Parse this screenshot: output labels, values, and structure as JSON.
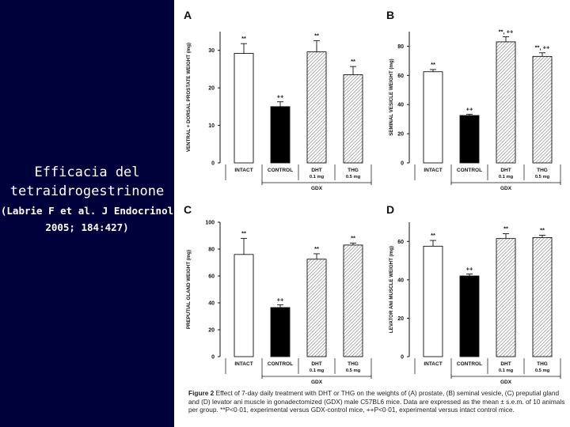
{
  "slide": {
    "title": "Efficacia del tetraidrogestrinone",
    "citation": "(Labrie F et al. J Endocrinol 2005; 184:427)"
  },
  "figure": {
    "caption_label": "Figure 2",
    "caption_text": "Effect of 7-day daily treatment with DHT or THG on the weights of (A) prostate, (B) seminal vesicle, (C) preputial gland and (D) levator ani muscle in gonadectomized (GDX) male C57BL6 mice. Data are expressed as the mean ± s.e.m. of 10 animals per group. **P<0·01, experimental versus GDX-control mice, ++P<0·01, experimental versus intact control mice."
  },
  "colors": {
    "background": "#00003a",
    "intact": "#ffffff",
    "control": "#000000",
    "hatched": "#d8d8d8"
  },
  "chart_data": [
    {
      "type": "bar",
      "panel": "A",
      "ylabel": "VENTRAL + DORSAL PROSTATE WEIGHT (mg)",
      "ylim": [
        0,
        35
      ],
      "yticks": [
        0,
        10,
        20,
        30
      ],
      "categories": [
        "INTACT",
        "CONTROL",
        "DHT",
        "THG"
      ],
      "doses": [
        "",
        "",
        "0.1 mg",
        "0.5 mg"
      ],
      "values": [
        29.2,
        15.0,
        29.6,
        23.5
      ],
      "errors": [
        2.6,
        1.3,
        3.0,
        2.2
      ],
      "markers": [
        "**",
        "++",
        "**",
        "**"
      ],
      "group_label": "GDX"
    },
    {
      "type": "bar",
      "panel": "B",
      "ylabel": "SEMINAL VESICLE WEIGHT (mg)",
      "ylim": [
        0,
        90
      ],
      "yticks": [
        0,
        20,
        40,
        60,
        80
      ],
      "categories": [
        "INTACT",
        "CONTROL",
        "DHT",
        "THG"
      ],
      "doses": [
        "",
        "",
        "0.1 mg",
        "0.5 mg"
      ],
      "values": [
        62.5,
        32.5,
        83.0,
        73.0
      ],
      "errors": [
        1.5,
        0.8,
        3.5,
        2.5
      ],
      "markers": [
        "**",
        "++",
        "**, ++",
        "**, ++"
      ],
      "group_label": "GDX"
    },
    {
      "type": "bar",
      "panel": "C",
      "ylabel": "PREPUTIAL GLAND WEIGHT (mg)",
      "ylim": [
        0,
        100
      ],
      "yticks": [
        0,
        20,
        40,
        60,
        80,
        100
      ],
      "categories": [
        "INTACT",
        "CONTROL",
        "DHT",
        "THG"
      ],
      "doses": [
        "",
        "",
        "0.1 mg",
        "0.5 mg"
      ],
      "values": [
        76.0,
        36.5,
        72.5,
        83.0
      ],
      "errors": [
        12.0,
        2.0,
        4.0,
        1.5
      ],
      "markers": [
        "**",
        "++",
        "**",
        "**"
      ],
      "group_label": "GDX"
    },
    {
      "type": "bar",
      "panel": "D",
      "ylabel": "LEVATOR ANI MUSCLE WEIGHT (mg)",
      "ylim": [
        0,
        70
      ],
      "yticks": [
        0,
        20,
        40,
        60
      ],
      "categories": [
        "INTACT",
        "CONTROL",
        "DHT",
        "THG"
      ],
      "doses": [
        "",
        "",
        "0.1 mg",
        "0.5 mg"
      ],
      "values": [
        57.5,
        42.0,
        61.5,
        62.0
      ],
      "errors": [
        3.0,
        1.0,
        2.5,
        1.2
      ],
      "markers": [
        "**",
        "++",
        "**",
        "**"
      ],
      "group_label": "GDX"
    }
  ]
}
